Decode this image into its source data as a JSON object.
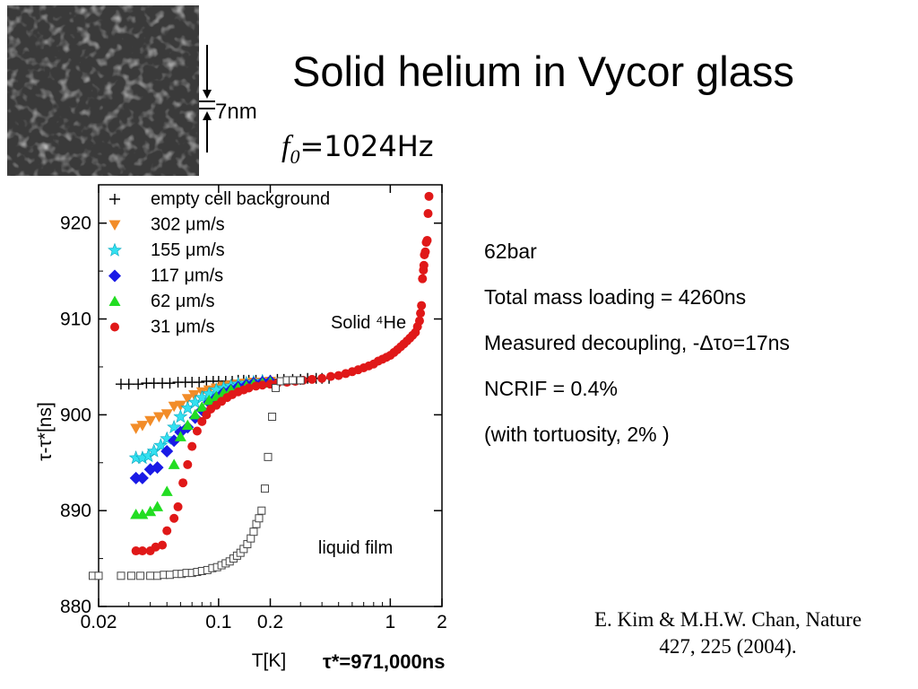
{
  "slide": {
    "title": "Solid helium in Vycor glass",
    "scale_label": "7nm",
    "frequency": {
      "symbol": "f",
      "subscript": "0",
      "value": "=1024Hz"
    }
  },
  "notes": [
    "62bar",
    "Total mass loading = 4260ns",
    "Measured decoupling, -Δτo=17ns",
    "NCRIF = 0.4%",
    "(with tortuosity, 2% )"
  ],
  "citation": {
    "line1": "E. Kim & M.H.W. Chan, Nature",
    "line2": "427, 225 (2004)."
  },
  "tau_note": "τ*=971,000ns",
  "chart_data": {
    "type": "scatter",
    "xscale": "log",
    "xlim": [
      0.02,
      2.0
    ],
    "ylim": [
      880,
      924
    ],
    "xlabel": "T[K]",
    "ylabel": "τ-τ*[ns]",
    "xticks": [
      {
        "value": 0.02,
        "label": "0.02"
      },
      {
        "value": 0.1,
        "label": "0.1"
      },
      {
        "value": 0.2,
        "label": "0.2"
      },
      {
        "value": 1,
        "label": "1"
      },
      {
        "value": 2,
        "label": "2"
      }
    ],
    "yticks": [
      880,
      890,
      900,
      910,
      920
    ],
    "annotations": [
      {
        "text": "Solid ⁴He",
        "color": "#d62020",
        "x": 0.45,
        "y": 909.7
      },
      {
        "text": "liquid film",
        "color": "#000000",
        "x": 0.38,
        "y": 886.2
      }
    ],
    "legend_position": "top-left",
    "series": [
      {
        "name": "empty cell background",
        "marker": "plus",
        "color": "#000000",
        "points": [
          [
            0.027,
            903.2
          ],
          [
            0.03,
            903.2
          ],
          [
            0.034,
            903.2
          ],
          [
            0.038,
            903.3
          ],
          [
            0.042,
            903.3
          ],
          [
            0.047,
            903.3
          ],
          [
            0.052,
            903.3
          ],
          [
            0.058,
            903.4
          ],
          [
            0.064,
            903.4
          ],
          [
            0.07,
            903.4
          ],
          [
            0.077,
            903.4
          ],
          [
            0.085,
            903.5
          ],
          [
            0.093,
            903.5
          ],
          [
            0.1,
            903.5
          ],
          [
            0.11,
            903.5
          ],
          [
            0.12,
            903.5
          ],
          [
            0.13,
            903.6
          ],
          [
            0.14,
            903.6
          ],
          [
            0.15,
            903.6
          ],
          [
            0.165,
            903.6
          ],
          [
            0.18,
            903.6
          ],
          [
            0.2,
            903.6
          ],
          [
            0.22,
            903.7
          ],
          [
            0.24,
            903.7
          ],
          [
            0.27,
            903.7
          ],
          [
            0.3,
            903.7
          ],
          [
            0.33,
            903.8
          ],
          [
            0.37,
            903.8
          ],
          [
            0.4,
            903.8
          ],
          [
            0.44,
            903.8
          ]
        ]
      },
      {
        "name": "302 μm/s",
        "marker": "triangle-down",
        "color": "#f28c28",
        "points": [
          [
            0.033,
            898.6
          ],
          [
            0.036,
            898.9
          ],
          [
            0.04,
            899.4
          ],
          [
            0.045,
            899.8
          ],
          [
            0.05,
            900.1
          ],
          [
            0.055,
            900.9
          ],
          [
            0.06,
            901.0
          ],
          [
            0.066,
            901.7
          ],
          [
            0.072,
            902.1
          ],
          [
            0.08,
            902.4
          ],
          [
            0.088,
            902.6
          ],
          [
            0.097,
            902.8
          ],
          [
            0.107,
            903.0
          ],
          [
            0.118,
            903.1
          ],
          [
            0.13,
            903.2
          ],
          [
            0.143,
            903.3
          ],
          [
            0.16,
            903.4
          ],
          [
            0.18,
            903.4
          ],
          [
            0.2,
            903.5
          ]
        ]
      },
      {
        "name": "155 μm/s",
        "marker": "star",
        "color": "#33e0f0",
        "points": [
          [
            0.033,
            895.5
          ],
          [
            0.036,
            895.5
          ],
          [
            0.039,
            895.7
          ],
          [
            0.042,
            896.2
          ],
          [
            0.046,
            896.8
          ],
          [
            0.05,
            897.5
          ],
          [
            0.055,
            898.7
          ],
          [
            0.06,
            899.8
          ],
          [
            0.066,
            900.7
          ],
          [
            0.073,
            901.3
          ],
          [
            0.08,
            901.8
          ],
          [
            0.088,
            902.2
          ],
          [
            0.097,
            902.6
          ],
          [
            0.107,
            902.8
          ],
          [
            0.118,
            903.0
          ],
          [
            0.13,
            903.2
          ],
          [
            0.145,
            903.3
          ],
          [
            0.16,
            903.4
          ],
          [
            0.18,
            903.5
          ]
        ]
      },
      {
        "name": "117 μm/s",
        "marker": "diamond",
        "color": "#1a1ae6",
        "points": [
          [
            0.033,
            893.4
          ],
          [
            0.036,
            893.4
          ],
          [
            0.04,
            894.3
          ],
          [
            0.044,
            894.5
          ],
          [
            0.05,
            896.2
          ],
          [
            0.055,
            897.3
          ],
          [
            0.06,
            898.2
          ],
          [
            0.066,
            898.7
          ],
          [
            0.073,
            899.7
          ],
          [
            0.08,
            900.5
          ],
          [
            0.088,
            901.3
          ],
          [
            0.097,
            901.8
          ],
          [
            0.107,
            902.3
          ],
          [
            0.118,
            902.6
          ],
          [
            0.13,
            902.9
          ],
          [
            0.145,
            903.1
          ],
          [
            0.16,
            903.3
          ],
          [
            0.18,
            903.4
          ],
          [
            0.2,
            903.5
          ]
        ]
      },
      {
        "name": "62 μm/s",
        "marker": "triangle-up",
        "color": "#22dd22",
        "points": [
          [
            0.033,
            889.6
          ],
          [
            0.036,
            889.6
          ],
          [
            0.04,
            889.9
          ],
          [
            0.044,
            890.4
          ],
          [
            0.05,
            892.0
          ],
          [
            0.055,
            894.8
          ],
          [
            0.06,
            897.7
          ],
          [
            0.066,
            898.9
          ],
          [
            0.073,
            900.0
          ],
          [
            0.08,
            900.8
          ],
          [
            0.088,
            901.5
          ],
          [
            0.097,
            901.9
          ],
          [
            0.107,
            902.3
          ],
          [
            0.118,
            902.6
          ],
          [
            0.13,
            902.8
          ],
          [
            0.145,
            903.0
          ],
          [
            0.16,
            903.2
          ],
          [
            0.18,
            903.3
          ],
          [
            0.2,
            903.4
          ]
        ]
      },
      {
        "name": "31 μm/s",
        "marker": "circle",
        "color": "#e01818",
        "points": [
          [
            0.033,
            885.8
          ],
          [
            0.036,
            885.8
          ],
          [
            0.04,
            885.8
          ],
          [
            0.043,
            886.2
          ],
          [
            0.047,
            886.4
          ],
          [
            0.05,
            887.9
          ],
          [
            0.055,
            889.2
          ],
          [
            0.058,
            890.4
          ],
          [
            0.062,
            892.9
          ],
          [
            0.066,
            894.8
          ],
          [
            0.07,
            896.7
          ],
          [
            0.075,
            898.3
          ],
          [
            0.08,
            899.3
          ],
          [
            0.085,
            900.0
          ],
          [
            0.09,
            900.6
          ],
          [
            0.097,
            901.0
          ],
          [
            0.104,
            901.4
          ],
          [
            0.112,
            901.8
          ],
          [
            0.12,
            902.1
          ],
          [
            0.13,
            902.4
          ],
          [
            0.14,
            902.6
          ],
          [
            0.15,
            902.8
          ],
          [
            0.165,
            903.0
          ],
          [
            0.18,
            903.1
          ],
          [
            0.2,
            903.2
          ],
          [
            0.22,
            903.3
          ],
          [
            0.25,
            903.4
          ],
          [
            0.28,
            903.5
          ],
          [
            0.31,
            903.6
          ],
          [
            0.35,
            903.7
          ],
          [
            0.4,
            903.8
          ],
          [
            0.45,
            904.0
          ],
          [
            0.5,
            904.1
          ],
          [
            0.55,
            904.3
          ],
          [
            0.6,
            904.5
          ],
          [
            0.65,
            904.7
          ],
          [
            0.7,
            904.9
          ],
          [
            0.75,
            905.1
          ],
          [
            0.8,
            905.3
          ],
          [
            0.85,
            905.6
          ],
          [
            0.9,
            905.8
          ],
          [
            0.95,
            906.0
          ],
          [
            1.0,
            906.2
          ],
          [
            1.05,
            906.5
          ],
          [
            1.1,
            906.8
          ],
          [
            1.15,
            907.1
          ],
          [
            1.2,
            907.4
          ],
          [
            1.25,
            907.7
          ],
          [
            1.3,
            908.0
          ],
          [
            1.35,
            908.3
          ],
          [
            1.4,
            908.6
          ],
          [
            1.44,
            909.2
          ],
          [
            1.48,
            909.8
          ],
          [
            1.5,
            910.6
          ],
          [
            1.52,
            911.4
          ],
          [
            1.54,
            914.2
          ],
          [
            1.56,
            915.1
          ],
          [
            1.57,
            915.6
          ],
          [
            1.58,
            916.7
          ],
          [
            1.6,
            917.0
          ],
          [
            1.62,
            918.0
          ],
          [
            1.64,
            918.2
          ],
          [
            1.66,
            921.0
          ],
          [
            1.68,
            922.8
          ]
        ]
      },
      {
        "name": "liquid film",
        "marker": "square-open",
        "color": "#000000",
        "show_in_legend": false,
        "points": [
          [
            0.0185,
            883.2
          ],
          [
            0.02,
            883.2
          ],
          [
            0.027,
            883.2
          ],
          [
            0.031,
            883.2
          ],
          [
            0.035,
            883.2
          ],
          [
            0.04,
            883.2
          ],
          [
            0.044,
            883.2
          ],
          [
            0.048,
            883.3
          ],
          [
            0.052,
            883.3
          ],
          [
            0.057,
            883.4
          ],
          [
            0.061,
            883.4
          ],
          [
            0.065,
            883.5
          ],
          [
            0.07,
            883.5
          ],
          [
            0.075,
            883.6
          ],
          [
            0.08,
            883.7
          ],
          [
            0.086,
            883.8
          ],
          [
            0.092,
            884.0
          ],
          [
            0.098,
            884.1
          ],
          [
            0.104,
            884.3
          ],
          [
            0.11,
            884.5
          ],
          [
            0.116,
            884.7
          ],
          [
            0.122,
            885.0
          ],
          [
            0.128,
            885.3
          ],
          [
            0.134,
            885.6
          ],
          [
            0.14,
            886.0
          ],
          [
            0.147,
            886.5
          ],
          [
            0.154,
            887.1
          ],
          [
            0.16,
            887.8
          ],
          [
            0.166,
            888.6
          ],
          [
            0.172,
            889.2
          ],
          [
            0.178,
            890.0
          ],
          [
            0.186,
            892.3
          ],
          [
            0.194,
            895.6
          ],
          [
            0.205,
            899.8
          ],
          [
            0.215,
            902.8
          ],
          [
            0.23,
            903.5
          ],
          [
            0.25,
            903.6
          ],
          [
            0.27,
            903.6
          ],
          [
            0.3,
            903.6
          ]
        ]
      }
    ]
  }
}
